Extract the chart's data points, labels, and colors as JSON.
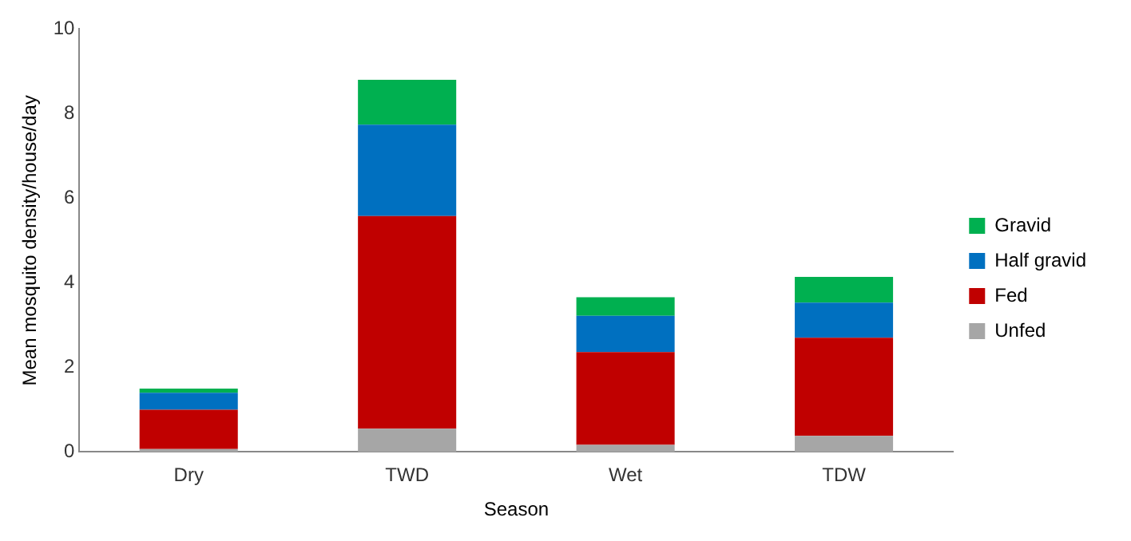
{
  "chart_data": {
    "type": "bar",
    "stacked": true,
    "xlabel": "Season",
    "ylabel": "Mean mosquito density/house/day",
    "categories": [
      "Dry",
      "TWD",
      "Wet",
      "TDW"
    ],
    "series": [
      {
        "name": "Unfed",
        "color": "#a6a6a6",
        "values": [
          0.07,
          0.55,
          0.17,
          0.38
        ]
      },
      {
        "name": "Fed",
        "color": "#c00000",
        "values": [
          0.93,
          5.03,
          2.19,
          2.32
        ]
      },
      {
        "name": "Half gravid",
        "color": "#0070c0",
        "values": [
          0.4,
          2.16,
          0.86,
          0.83
        ]
      },
      {
        "name": "Gravid",
        "color": "#00b050",
        "values": [
          0.1,
          1.06,
          0.44,
          0.61
        ]
      }
    ],
    "ylim": [
      0,
      10
    ],
    "yticks": [
      0,
      2,
      4,
      6,
      8,
      10
    ],
    "grid": false,
    "legend": "right"
  }
}
